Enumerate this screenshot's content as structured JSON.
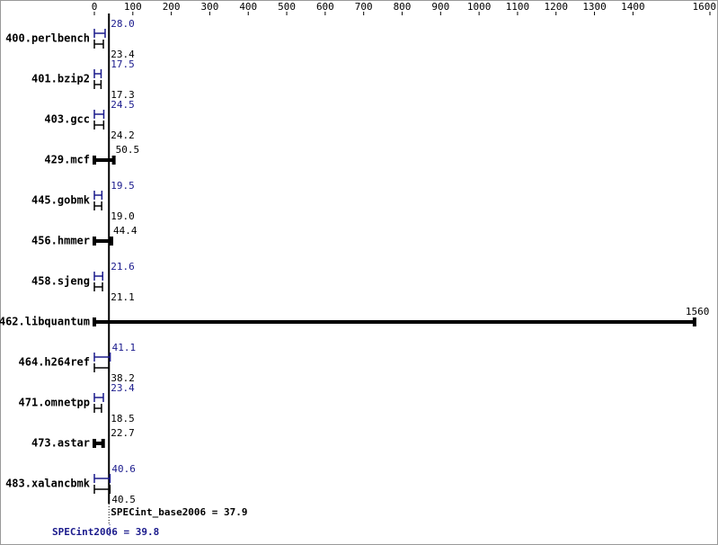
{
  "chart_data": {
    "type": "bar",
    "categories": [
      "400.perlbench",
      "401.bzip2",
      "403.gcc",
      "429.mcf",
      "445.gobmk",
      "456.hmmer",
      "458.sjeng",
      "462.libquantum",
      "464.h264ref",
      "471.omnetpp",
      "473.astar",
      "483.xalancbmk"
    ],
    "series": [
      {
        "color": "#000000",
        "values": [
          23.4,
          17.3,
          24.2,
          50.5,
          19.0,
          44.4,
          21.1,
          1560,
          38.2,
          18.5,
          22.7,
          40.5
        ],
        "value_labels": [
          "23.4",
          "17.3",
          "24.2",
          "50.5",
          "19.0",
          "44.4",
          "21.1",
          "1560",
          "38.2",
          "18.5",
          "22.7",
          "40.5"
        ]
      },
      {
        "color": "#1a1a8c",
        "values": [
          28.0,
          17.5,
          24.5,
          null,
          19.5,
          null,
          21.6,
          null,
          41.1,
          23.4,
          null,
          40.6
        ],
        "value_labels": [
          "28.0",
          "17.5",
          "24.5",
          null,
          "19.5",
          null,
          "21.6",
          null,
          "41.1",
          "23.4",
          null,
          "40.6"
        ]
      }
    ],
    "xlim": [
      0,
      1600
    ],
    "xticks": [
      0,
      100,
      200,
      300,
      400,
      500,
      600,
      700,
      800,
      900,
      1000,
      1100,
      1200,
      1300,
      1400,
      1600
    ],
    "summary": [
      {
        "label": "SPECint_base2006 = 37.9",
        "value": 37.9,
        "color": "#000000"
      },
      {
        "label": "SPECint2006 = 39.8",
        "value": 39.8,
        "color": "#1a1a8c"
      }
    ]
  }
}
